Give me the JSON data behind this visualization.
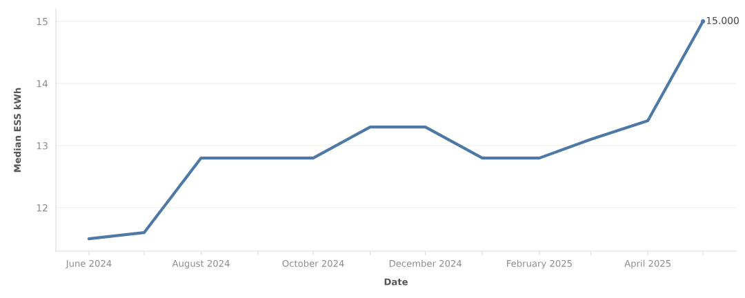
{
  "chart_data": {
    "type": "line",
    "x": [
      "2024-06",
      "2024-07",
      "2024-08",
      "2024-09",
      "2024-10",
      "2024-11",
      "2024-12",
      "2025-01",
      "2025-02",
      "2025-03",
      "2025-04",
      "2025-05"
    ],
    "series": [
      {
        "color": "#4e79a7",
        "values": [
          11.5,
          11.6,
          12.8,
          12.8,
          12.8,
          13.3,
          13.3,
          12.8,
          12.8,
          13.1,
          13.4,
          15.0
        ]
      },
      {
        "type": "scatter",
        "color": "#4e79a7",
        "marker": "circle",
        "x": [
          "2025-05"
        ],
        "values": [
          15.0
        ],
        "value_labels": [
          "15.000"
        ]
      }
    ],
    "xlabel": "Date",
    "ylabel": "Median ESS kWh",
    "xlim": [
      "2024-05-14",
      "2025-05-19"
    ],
    "xticks": [
      {
        "value": "2024-06",
        "label": "June 2024"
      },
      {
        "value": "2024-07",
        "label": null
      },
      {
        "value": "2024-08",
        "label": "August 2024"
      },
      {
        "value": "2024-09",
        "label": null
      },
      {
        "value": "2024-10",
        "label": "October 2024"
      },
      {
        "value": "2024-11",
        "label": null
      },
      {
        "value": "2024-12",
        "label": "December 2024"
      },
      {
        "value": "2025-01",
        "label": null
      },
      {
        "value": "2025-02",
        "label": "February 2025"
      },
      {
        "value": "2025-03",
        "label": null
      },
      {
        "value": "2025-04",
        "label": "April 2025"
      },
      {
        "value": "2025-05",
        "label": null
      }
    ],
    "ylim": [
      11.3,
      15.2
    ],
    "yticks": [
      12,
      13,
      14,
      15
    ],
    "grid": "y",
    "line_style": "solid"
  }
}
